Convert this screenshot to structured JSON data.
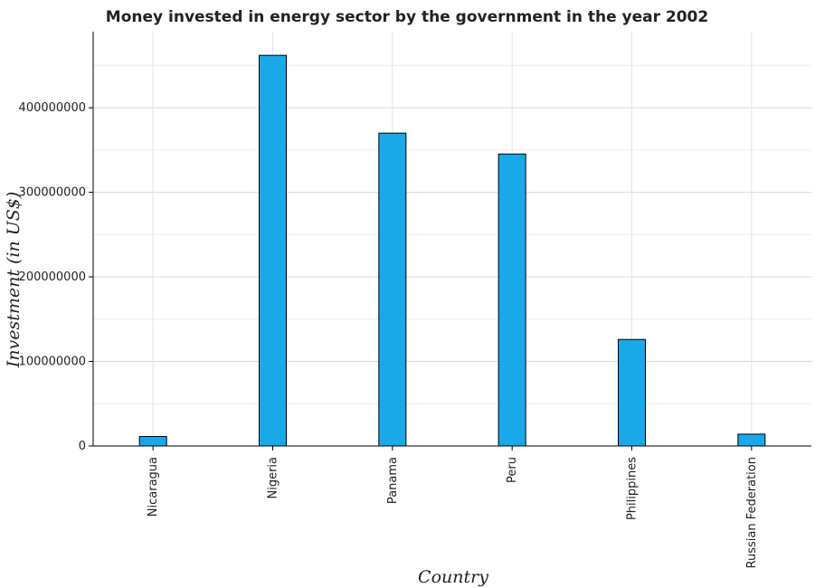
{
  "chart_data": {
    "type": "bar",
    "title": "Money invested in energy sector by the government in the year 2002",
    "xlabel": "Country",
    "ylabel": "Investment (in US$)",
    "categories": [
      "Nicaragua",
      "Nigeria",
      "Panama",
      "Peru",
      "Philippines",
      "Russian Federation"
    ],
    "values": [
      11200000,
      462000000,
      370000000,
      345300000,
      126000000,
      14000000
    ],
    "ylim": [
      0,
      490000000
    ],
    "yticks": [
      0,
      100000000,
      200000000,
      300000000,
      400000000
    ],
    "ytick_labels": [
      "0",
      "100000000",
      "200000000",
      "300000000",
      "400000000"
    ],
    "grid": true,
    "bar_fill": "#1aa8e8",
    "bar_stroke": "#000000"
  }
}
